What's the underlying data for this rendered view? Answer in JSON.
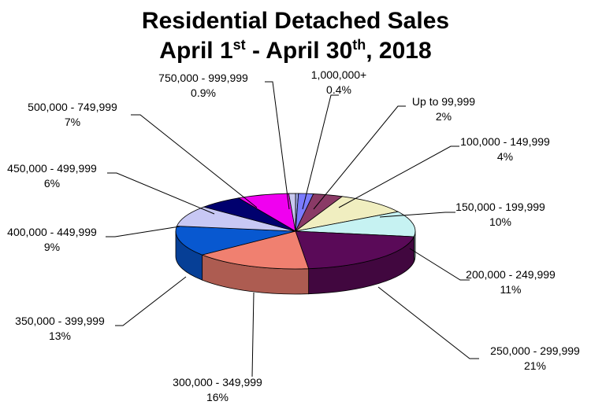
{
  "chart_data": {
    "type": "pie",
    "title": "Residential Detached Sales",
    "subtitle": {
      "part1": "April 1",
      "sup1": "st",
      "part2": " - April 30",
      "sup2": "th",
      "part3": ", 2018"
    },
    "slices": [
      {
        "label": "1,000,000+",
        "value": 0.4,
        "value_label": "0.4%",
        "color": "#9EA8E8"
      },
      {
        "label": "Up to 99,999",
        "value": 2,
        "value_label": "2%",
        "color": "#7B7BFF"
      },
      {
        "label": "100,000 - 149,999",
        "value": 4,
        "value_label": "4%",
        "color": "#8A3A66"
      },
      {
        "label": "150,000 - 199,999",
        "value": 10,
        "value_label": "10%",
        "color": "#F0EEC0"
      },
      {
        "label": "200,000 - 249,999",
        "value": 11,
        "value_label": "11%",
        "color": "#C6F2F2"
      },
      {
        "label": "250,000 - 299,999",
        "value": 21,
        "value_label": "21%",
        "color": "#5A0A58"
      },
      {
        "label": "300,000 - 349,999",
        "value": 16,
        "value_label": "16%",
        "color": "#F08070"
      },
      {
        "label": "350,000 - 399,999",
        "value": 13,
        "value_label": "13%",
        "color": "#0858D0"
      },
      {
        "label": "400,000 - 449,999",
        "value": 9,
        "value_label": "9%",
        "color": "#C8C8F4"
      },
      {
        "label": "450,000 - 499,999",
        "value": 6,
        "value_label": "6%",
        "color": "#00006E"
      },
      {
        "label": "500,000 - 749,999",
        "value": 7,
        "value_label": "7%",
        "color": "#F000F0"
      },
      {
        "label": "750,000 - 999,999",
        "value": 0.9,
        "value_label": "0.9%",
        "color": "#C8C8F0"
      }
    ]
  }
}
